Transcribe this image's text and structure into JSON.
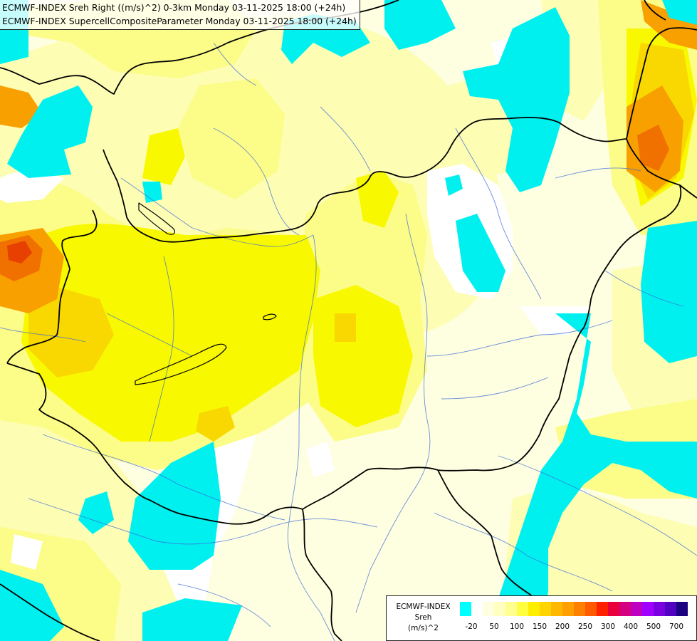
{
  "header": {
    "line1": "ECMWF-INDEX Sreh Right ((m/s)^2) 0-3km Monday 03-11-2025 18:00 (+24h)",
    "line2": "ECMWF-INDEX SupercellCompositeParameter Monday 03-11-2025 18:00 (+24h)"
  },
  "legend": {
    "title_line1": "ECMWF-INDEX",
    "title_line2": "Sreh",
    "title_line3": "(m/s)^2",
    "colors": [
      "#00ffff",
      "#ffffff",
      "#ffffe0",
      "#ffffc0",
      "#ffff90",
      "#ffff40",
      "#ffee00",
      "#ffd400",
      "#ffb800",
      "#ff9f00",
      "#ff7f00",
      "#ff5a00",
      "#ff2000",
      "#e8003c",
      "#d4007f",
      "#c000c0",
      "#a000ff",
      "#7a00e0",
      "#5000c0",
      "#1a0080"
    ],
    "ticks": [
      "-20",
      "50",
      "100",
      "150",
      "200",
      "250",
      "300",
      "400",
      "500",
      "700"
    ]
  },
  "map_colors": {
    "cyan": "#00f0f0",
    "white": "#ffffff",
    "very_light": "#fefee0",
    "light": "#fdfdb4",
    "pale_yellow": "#fcfc88",
    "yellow": "#f8f800",
    "gold": "#f8d800",
    "orange": "#f8a000",
    "dark_orange": "#f07000",
    "red_orange": "#e84000"
  }
}
